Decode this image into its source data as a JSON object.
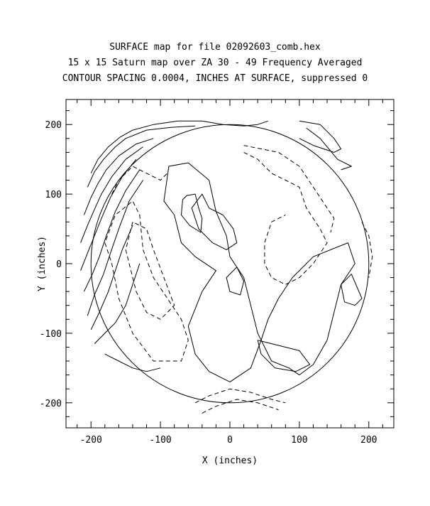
{
  "chart_data": {
    "type": "contour",
    "title_lines": [
      "SURFACE map for file 02092603_comb.hex",
      "15 x 15 Saturn map over ZA 30 - 49  Frequency Averaged",
      "CONTOUR SPACING 0.0004, INCHES AT SURFACE, suppressed 0"
    ],
    "xlabel": "X (inches)",
    "ylabel": "Y (inches)",
    "xlim": [
      -236,
      236
    ],
    "ylim": [
      -236,
      236
    ],
    "xticks": [
      -200,
      -100,
      0,
      100,
      200
    ],
    "yticks": [
      -200,
      -100,
      0,
      100,
      200
    ],
    "boundary_radius": 200,
    "contour_interval": 0.0004,
    "colors": {
      "line": "#000000",
      "background": "#ffffff"
    },
    "contours": [
      {
        "level": "positive",
        "style": "solid",
        "closed": true,
        "points": [
          [
            -70,
            30
          ],
          [
            -80,
            70
          ],
          [
            -95,
            90
          ],
          [
            -88,
            140
          ],
          [
            -60,
            145
          ],
          [
            -30,
            120
          ],
          [
            -20,
            75
          ],
          [
            -5,
            40
          ],
          [
            0,
            10
          ],
          [
            20,
            -20
          ],
          [
            30,
            -60
          ],
          [
            40,
            -100
          ],
          [
            60,
            -140
          ],
          [
            85,
            -150
          ],
          [
            100,
            -160
          ],
          [
            120,
            -145
          ],
          [
            140,
            -110
          ],
          [
            150,
            -70
          ],
          [
            160,
            -30
          ],
          [
            180,
            0
          ],
          [
            170,
            30
          ],
          [
            120,
            10
          ],
          [
            90,
            -20
          ],
          [
            70,
            -50
          ],
          [
            55,
            -80
          ],
          [
            45,
            -110
          ],
          [
            30,
            -150
          ],
          [
            0,
            -170
          ],
          [
            -30,
            -155
          ],
          [
            -50,
            -130
          ],
          [
            -60,
            -90
          ],
          [
            -40,
            -40
          ],
          [
            -20,
            -10
          ],
          [
            -50,
            10
          ]
        ]
      },
      {
        "level": "positive",
        "style": "solid",
        "closed": true,
        "points": [
          [
            -68,
            92
          ],
          [
            -70,
            70
          ],
          [
            -58,
            55
          ],
          [
            -42,
            45
          ],
          [
            -40,
            65
          ],
          [
            -45,
            80
          ],
          [
            -50,
            100
          ],
          [
            -62,
            98
          ]
        ]
      },
      {
        "level": "positive",
        "style": "solid",
        "closed": true,
        "points": [
          [
            -40,
            100
          ],
          [
            -30,
            80
          ],
          [
            -10,
            70
          ],
          [
            5,
            50
          ],
          [
            10,
            30
          ],
          [
            -5,
            20
          ],
          [
            -25,
            30
          ],
          [
            -45,
            50
          ],
          [
            -55,
            80
          ]
        ]
      },
      {
        "level": "positive",
        "style": "solid",
        "closed": true,
        "points": [
          [
            10,
            -5
          ],
          [
            20,
            -25
          ],
          [
            15,
            -45
          ],
          [
            0,
            -40
          ],
          [
            -5,
            -20
          ]
        ]
      },
      {
        "level": "positive",
        "style": "solid",
        "closed": true,
        "points": [
          [
            40,
            -110
          ],
          [
            60,
            -115
          ],
          [
            100,
            -125
          ],
          [
            115,
            -145
          ],
          [
            95,
            -155
          ],
          [
            65,
            -150
          ],
          [
            45,
            -130
          ]
        ]
      },
      {
        "level": "positive",
        "style": "solid",
        "closed": true,
        "points": [
          [
            160,
            -30
          ],
          [
            175,
            -15
          ],
          [
            190,
            -50
          ],
          [
            180,
            -60
          ],
          [
            165,
            -55
          ]
        ]
      },
      {
        "level": "positive",
        "style": "solid",
        "closed": false,
        "points": [
          [
            -200,
            130
          ],
          [
            -190,
            150
          ],
          [
            -175,
            168
          ],
          [
            -158,
            182
          ],
          [
            -140,
            192
          ],
          [
            -110,
            200
          ],
          [
            -75,
            205
          ],
          [
            -40,
            205
          ],
          [
            -10,
            200
          ],
          [
            20,
            198
          ],
          [
            40,
            200
          ],
          [
            55,
            205
          ]
        ]
      },
      {
        "level": "positive",
        "style": "solid",
        "closed": false,
        "points": [
          [
            -205,
            110
          ],
          [
            -195,
            132
          ],
          [
            -182,
            150
          ],
          [
            -165,
            168
          ],
          [
            -150,
            180
          ],
          [
            -120,
            192
          ],
          [
            -85,
            196
          ],
          [
            -50,
            198
          ]
        ]
      },
      {
        "level": "positive",
        "style": "solid",
        "closed": false,
        "points": [
          [
            -210,
            70
          ],
          [
            -200,
            95
          ],
          [
            -190,
            115
          ],
          [
            -178,
            135
          ],
          [
            -160,
            155
          ],
          [
            -135,
            172
          ],
          [
            -110,
            180
          ]
        ]
      },
      {
        "level": "positive",
        "style": "solid",
        "closed": false,
        "points": [
          [
            -215,
            30
          ],
          [
            -205,
            55
          ],
          [
            -195,
            78
          ],
          [
            -185,
            100
          ],
          [
            -170,
            125
          ],
          [
            -150,
            150
          ],
          [
            -125,
            168
          ]
        ]
      },
      {
        "level": "positive",
        "style": "solid",
        "closed": false,
        "points": [
          [
            -215,
            -10
          ],
          [
            -205,
            15
          ],
          [
            -195,
            40
          ],
          [
            -185,
            65
          ],
          [
            -172,
            95
          ],
          [
            -155,
            125
          ],
          [
            -135,
            150
          ]
        ]
      },
      {
        "level": "positive",
        "style": "solid",
        "closed": false,
        "points": [
          [
            -210,
            -40
          ],
          [
            -198,
            -15
          ],
          [
            -188,
            10
          ],
          [
            -178,
            40
          ],
          [
            -165,
            75
          ],
          [
            -150,
            105
          ],
          [
            -130,
            135
          ]
        ]
      },
      {
        "level": "positive",
        "style": "solid",
        "closed": false,
        "points": [
          [
            -205,
            -75
          ],
          [
            -195,
            -45
          ],
          [
            -182,
            -15
          ],
          [
            -172,
            15
          ],
          [
            -160,
            50
          ],
          [
            -145,
            90
          ],
          [
            -125,
            120
          ]
        ]
      },
      {
        "level": "positive",
        "style": "solid",
        "closed": false,
        "points": [
          [
            -200,
            -95
          ],
          [
            -188,
            -70
          ],
          [
            -175,
            -40
          ],
          [
            -165,
            -10
          ],
          [
            -155,
            20
          ],
          [
            -140,
            55
          ]
        ]
      },
      {
        "level": "positive",
        "style": "solid",
        "closed": false,
        "points": [
          [
            -195,
            -115
          ],
          [
            -180,
            -100
          ],
          [
            -165,
            -85
          ],
          [
            -150,
            -60
          ],
          [
            -140,
            -30
          ],
          [
            -130,
            0
          ]
        ]
      },
      {
        "level": "positive",
        "style": "solid",
        "closed": false,
        "points": [
          [
            -180,
            -130
          ],
          [
            -160,
            -140
          ],
          [
            -140,
            -150
          ],
          [
            -120,
            -155
          ],
          [
            -100,
            -150
          ]
        ]
      },
      {
        "level": "positive",
        "style": "solid",
        "closed": false,
        "points": [
          [
            100,
            205
          ],
          [
            130,
            200
          ],
          [
            150,
            180
          ],
          [
            160,
            165
          ],
          [
            150,
            160
          ],
          [
            120,
            170
          ],
          [
            100,
            180
          ]
        ]
      },
      {
        "level": "positive",
        "style": "solid",
        "closed": false,
        "points": [
          [
            110,
            195
          ],
          [
            130,
            180
          ],
          [
            155,
            150
          ],
          [
            175,
            140
          ],
          [
            160,
            135
          ]
        ]
      },
      {
        "level": "negative",
        "style": "dashed",
        "closed": false,
        "points": [
          [
            -170,
            100
          ],
          [
            -160,
            120
          ],
          [
            -140,
            140
          ],
          [
            -120,
            130
          ],
          [
            -100,
            120
          ],
          [
            -90,
            130
          ]
        ]
      },
      {
        "level": "negative",
        "style": "dashed",
        "closed": true,
        "points": [
          [
            -140,
            60
          ],
          [
            -150,
            20
          ],
          [
            -135,
            -40
          ],
          [
            -120,
            -70
          ],
          [
            -100,
            -80
          ],
          [
            -80,
            -60
          ],
          [
            -95,
            -20
          ],
          [
            -110,
            20
          ],
          [
            -120,
            50
          ]
        ]
      },
      {
        "level": "negative",
        "style": "dashed",
        "closed": true,
        "points": [
          [
            -180,
            30
          ],
          [
            -170,
            0
          ],
          [
            -160,
            -50
          ],
          [
            -140,
            -100
          ],
          [
            -110,
            -140
          ],
          [
            -70,
            -140
          ],
          [
            -60,
            -110
          ],
          [
            -70,
            -80
          ],
          [
            -90,
            -50
          ],
          [
            -110,
            -20
          ],
          [
            -125,
            20
          ],
          [
            -130,
            70
          ],
          [
            -140,
            90
          ],
          [
            -165,
            70
          ]
        ]
      },
      {
        "level": "negative",
        "style": "dashed",
        "closed": false,
        "points": [
          [
            20,
            170
          ],
          [
            70,
            160
          ],
          [
            100,
            140
          ],
          [
            120,
            110
          ],
          [
            140,
            80
          ],
          [
            150,
            65
          ],
          [
            145,
            45
          ]
        ]
      },
      {
        "level": "negative",
        "style": "dashed",
        "closed": false,
        "points": [
          [
            20,
            160
          ],
          [
            40,
            150
          ],
          [
            60,
            130
          ],
          [
            80,
            120
          ],
          [
            100,
            110
          ],
          [
            110,
            80
          ],
          [
            130,
            50
          ],
          [
            140,
            30
          ],
          [
            120,
            0
          ],
          [
            100,
            -20
          ],
          [
            80,
            -30
          ],
          [
            60,
            -20
          ],
          [
            50,
            0
          ],
          [
            50,
            30
          ],
          [
            60,
            60
          ],
          [
            80,
            70
          ]
        ]
      },
      {
        "level": "negative",
        "style": "dashed",
        "closed": false,
        "points": [
          [
            -50,
            -200
          ],
          [
            -30,
            -190
          ],
          [
            0,
            -180
          ],
          [
            30,
            -185
          ],
          [
            60,
            -195
          ],
          [
            80,
            -200
          ]
        ]
      },
      {
        "level": "negative",
        "style": "dashed",
        "closed": false,
        "points": [
          [
            -40,
            -215
          ],
          [
            -20,
            -205
          ],
          [
            10,
            -195
          ],
          [
            40,
            -200
          ],
          [
            70,
            -210
          ]
        ]
      },
      {
        "level": "negative",
        "style": "dashed",
        "closed": false,
        "points": [
          [
            190,
            60
          ],
          [
            200,
            40
          ],
          [
            205,
            10
          ],
          [
            200,
            -20
          ]
        ]
      }
    ],
    "labels": []
  }
}
